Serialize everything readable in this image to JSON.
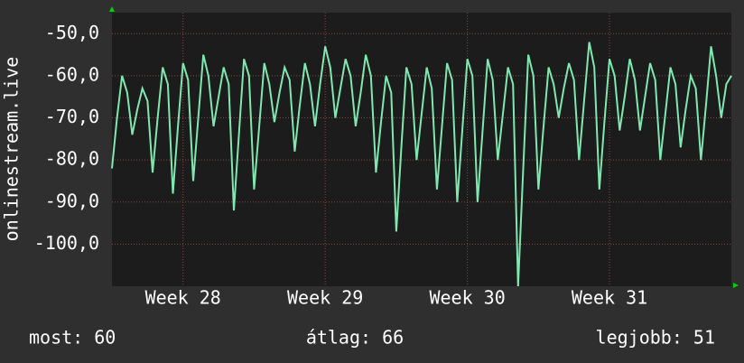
{
  "chart_data": {
    "type": "line",
    "ylabel": "onlinestream.live",
    "color": "#7fe8b0",
    "x": [
      0,
      0.25,
      0.5,
      0.75,
      1,
      1.25,
      1.5,
      1.75,
      2,
      2.25,
      2.5,
      2.75,
      3,
      3.25,
      3.5,
      3.75,
      4,
      4.25,
      4.5,
      4.75,
      5,
      5.25,
      5.5,
      5.75,
      6,
      6.25,
      6.5,
      6.75,
      7,
      7.25,
      7.5,
      7.75,
      8,
      8.25,
      8.5,
      8.75,
      9,
      9.25,
      9.5,
      9.75,
      10,
      10.25,
      10.5,
      10.75,
      11,
      11.25,
      11.5,
      11.75,
      12,
      12.25,
      12.5,
      12.75,
      13,
      13.25,
      13.5,
      13.75,
      14,
      14.25,
      14.5,
      14.75,
      15,
      15.25,
      15.5,
      15.75,
      16,
      16.25,
      16.5,
      16.75,
      17,
      17.25,
      17.5,
      17.75,
      18,
      18.25,
      18.5,
      18.75,
      19,
      19.25,
      19.5,
      19.75,
      20,
      20.25,
      20.5,
      20.75,
      21,
      21.25,
      21.5,
      21.75,
      22,
      22.25,
      22.5,
      22.75,
      23,
      23.25,
      23.5,
      23.75,
      24,
      24.25,
      24.5,
      24.75,
      25,
      25.25,
      25.5,
      25.75,
      26,
      26.25,
      26.5,
      26.75,
      27,
      27.25,
      27.5,
      27.75,
      28,
      28.25,
      28.5,
      28.75,
      29,
      29.25,
      29.5,
      29.75,
      30,
      30.25,
      30.5
    ],
    "values": [
      -82,
      -70,
      -60,
      -64,
      -74,
      -68,
      -63,
      -66,
      -83,
      -70,
      -58,
      -62,
      -88,
      -72,
      -57,
      -61,
      -85,
      -70,
      -55,
      -60,
      -72,
      -65,
      -58,
      -62,
      -92,
      -74,
      -56,
      -60,
      -87,
      -72,
      -57,
      -62,
      -71,
      -64,
      -58,
      -61,
      -78,
      -67,
      -57,
      -62,
      -72,
      -62,
      -53,
      -58,
      -70,
      -63,
      -56,
      -60,
      -72,
      -64,
      -55,
      -60,
      -83,
      -71,
      -60,
      -64,
      -97,
      -77,
      -58,
      -62,
      -80,
      -69,
      -58,
      -63,
      -87,
      -72,
      -57,
      -61,
      -90,
      -73,
      -56,
      -60,
      -90,
      -73,
      -56,
      -61,
      -80,
      -69,
      -58,
      -62,
      -110,
      -82,
      -55,
      -60,
      -87,
      -72,
      -58,
      -62,
      -70,
      -63,
      -57,
      -61,
      -80,
      -66,
      -52,
      -58,
      -87,
      -71,
      -56,
      -60,
      -73,
      -65,
      -56,
      -61,
      -73,
      -65,
      -57,
      -61,
      -80,
      -69,
      -58,
      -62,
      -77,
      -68,
      -60,
      -63,
      -80,
      -67,
      -53,
      -60,
      -70,
      -62,
      -60
    ],
    "xlim": [
      0,
      30.5
    ],
    "xticks": [
      {
        "value": 3.5,
        "label": "Week 28"
      },
      {
        "value": 10.5,
        "label": "Week 29"
      },
      {
        "value": 17.5,
        "label": "Week 30"
      },
      {
        "value": 24.5,
        "label": "Week 31"
      }
    ],
    "ylim": [
      -110,
      -45
    ],
    "yticks": [
      {
        "value": -100,
        "label": "-100,0"
      },
      {
        "value": -90,
        "label": "-90,0"
      },
      {
        "value": -80,
        "label": "-80,0"
      },
      {
        "value": -70,
        "label": "-70,0"
      },
      {
        "value": -60,
        "label": "-60,0"
      },
      {
        "value": -50,
        "label": "-50,0"
      }
    ],
    "grid": true,
    "footer": [
      "most: 60",
      "átlag: 66",
      "legjobb: 51"
    ]
  }
}
